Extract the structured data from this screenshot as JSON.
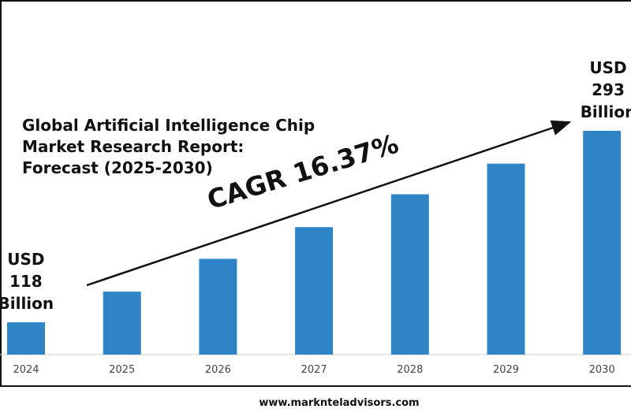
{
  "chart_data": {
    "type": "bar",
    "title": "Global Artificial Intelligence Chip Market Research Report: Forecast (2025-2030)",
    "annotation": "CAGR 16.37%",
    "categories": [
      "2024",
      "2025",
      "2026",
      "2027",
      "2028",
      "2029",
      "2030"
    ],
    "values": [
      118,
      146,
      176,
      205,
      235,
      263,
      293
    ],
    "value_labels": [
      "USD 118 Billion",
      null,
      null,
      null,
      null,
      null,
      "USD 293 Billion"
    ],
    "color": "#2f84c5"
  },
  "source": "www.marknteladvisors.com"
}
